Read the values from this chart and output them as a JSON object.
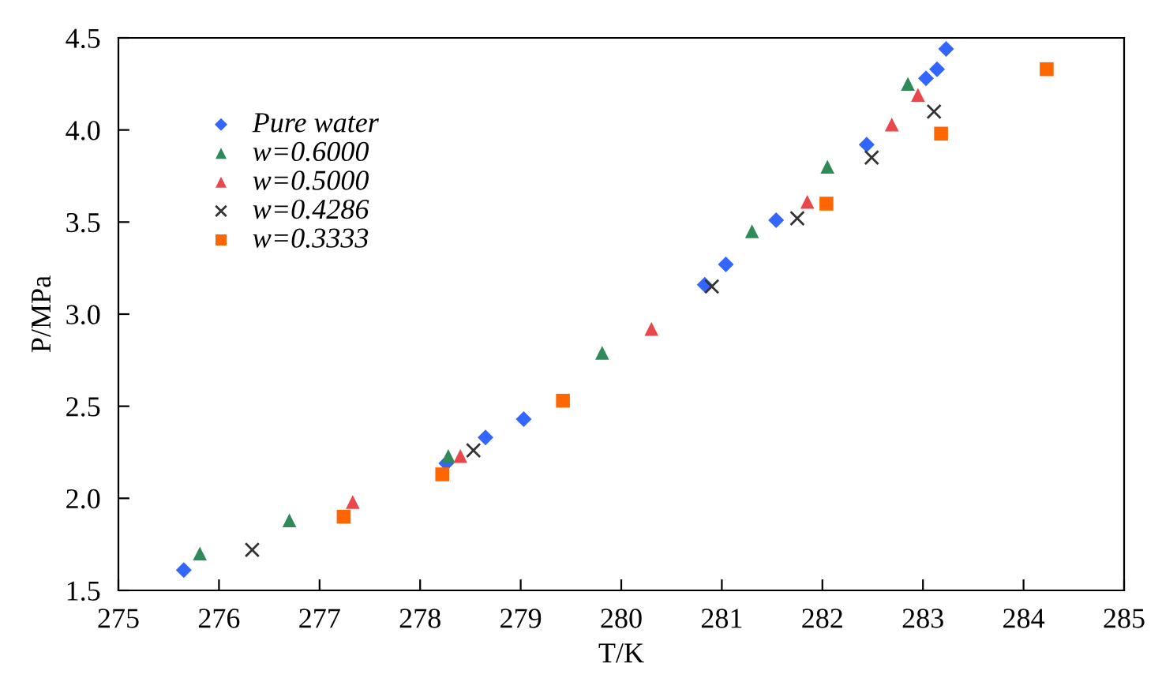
{
  "chart_data": {
    "type": "scatter",
    "xlabel": "T/K",
    "ylabel": "P/MPa",
    "xlim": [
      275,
      285
    ],
    "ylim": [
      1.5,
      4.5
    ],
    "xticks": [
      275,
      276,
      277,
      278,
      279,
      280,
      281,
      282,
      283,
      284,
      285
    ],
    "yticks": [
      {
        "value": 1.5,
        "label": "1.5"
      },
      {
        "value": 2.0,
        "label": "2.0"
      },
      {
        "value": 2.5,
        "label": "2.5"
      },
      {
        "value": 3.0,
        "label": "3.0"
      },
      {
        "value": 3.5,
        "label": "3.5"
      },
      {
        "value": 4.0,
        "label": "4.0"
      },
      {
        "value": 4.5,
        "label": "4.5"
      }
    ],
    "grid": false,
    "legend": "top left",
    "series": [
      {
        "name": "Pure water",
        "color": "#3366ff",
        "marker": "diamond",
        "x": [
          275.65,
          278.26,
          278.65,
          279.03,
          280.83,
          281.04,
          281.54,
          282.44,
          283.03,
          283.14,
          283.23
        ],
        "values": [
          1.61,
          2.19,
          2.33,
          2.43,
          3.16,
          3.27,
          3.51,
          3.92,
          4.28,
          4.33,
          4.44
        ]
      },
      {
        "name": "w=0.6000",
        "color": "#2e8b57",
        "marker": "triangle",
        "x": [
          275.81,
          276.7,
          278.28,
          279.81,
          281.3,
          282.05,
          282.85
        ],
        "values": [
          1.7,
          1.88,
          2.23,
          2.79,
          3.45,
          3.8,
          4.25
        ]
      },
      {
        "name": "w=0.5000",
        "color": "#e8474b",
        "marker": "triangle",
        "x": [
          277.33,
          278.4,
          280.3,
          281.85,
          282.69,
          282.95
        ],
        "values": [
          1.98,
          2.23,
          2.92,
          3.61,
          4.03,
          4.19
        ]
      },
      {
        "name": "w=0.4286",
        "color": "#333333",
        "marker": "cross",
        "x": [
          276.33,
          278.53,
          280.9,
          281.75,
          282.49,
          283.11
        ],
        "values": [
          1.72,
          2.26,
          3.15,
          3.52,
          3.85,
          4.1
        ]
      },
      {
        "name": "w=0.3333",
        "color": "#ff6600",
        "marker": "square",
        "x": [
          277.24,
          278.22,
          279.42,
          282.04,
          283.18,
          284.23
        ],
        "values": [
          1.9,
          2.13,
          2.53,
          3.6,
          3.98,
          4.33
        ]
      }
    ]
  }
}
